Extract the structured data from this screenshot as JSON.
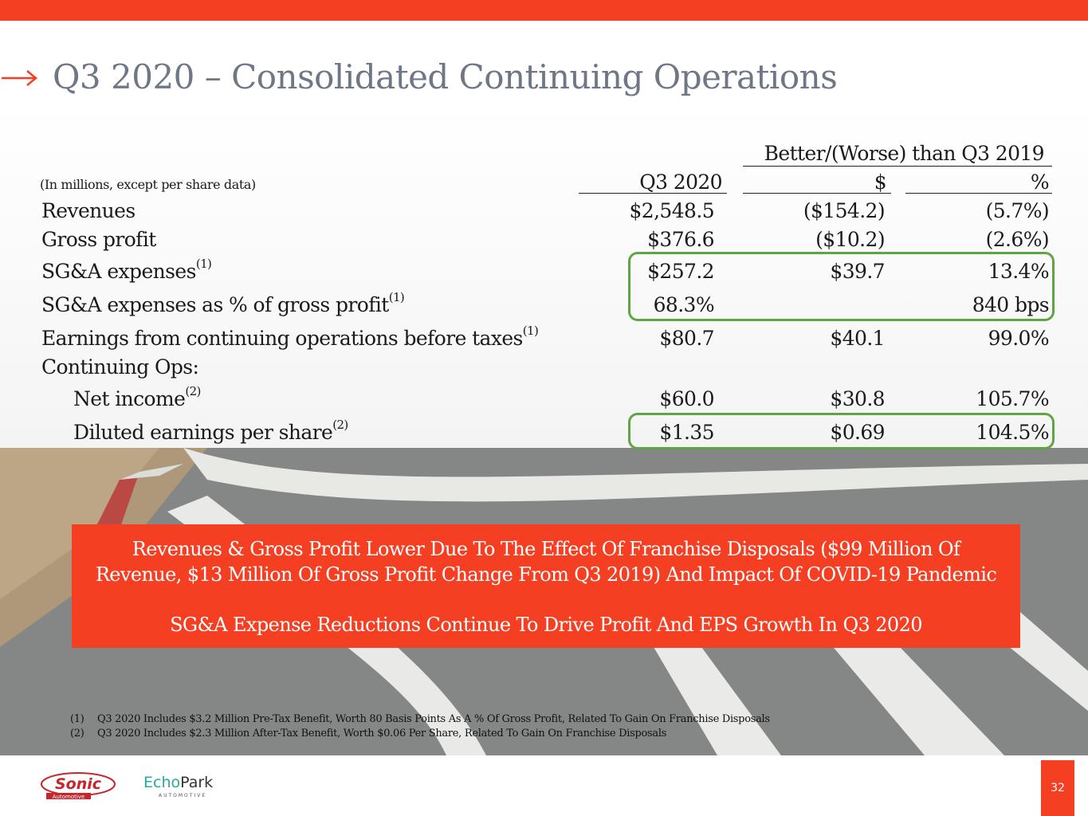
{
  "title": "Q3 2020 – Consolidated Continuing Operations",
  "colors": {
    "accent": "#f43f23",
    "highlight": "#5fa544",
    "title": "#6f7786"
  },
  "table": {
    "group_header": "Better/(Worse) than Q3 2019",
    "units_note": "(In millions, except per share data)",
    "col_q3": "Q3 2020",
    "col_dollar": "$",
    "col_pct": "%",
    "rows": [
      {
        "label": "Revenues",
        "sup": "",
        "q3": "$2,548.5",
        "dollar": "($154.2)",
        "pct": "(5.7%)"
      },
      {
        "label": "Gross profit",
        "sup": "",
        "q3": "$376.6",
        "dollar": "($10.2)",
        "pct": "(2.6%)"
      },
      {
        "label": "SG&A expenses",
        "sup": "(1)",
        "q3": "$257.2",
        "dollar": "$39.7",
        "pct": "13.4%"
      },
      {
        "label": "SG&A expenses as % of gross profit",
        "sup": "(1)",
        "q3": "68.3%",
        "dollar": "",
        "pct": "840 bps"
      },
      {
        "label": "Earnings from continuing operations before taxes",
        "sup": "(1)",
        "q3": "$80.7",
        "dollar": "$40.1",
        "pct": "99.0%"
      },
      {
        "label": "Continuing Ops:",
        "sup": "",
        "q3": "",
        "dollar": "",
        "pct": ""
      },
      {
        "label": "Net income",
        "sup": "(2)",
        "q3": "$60.0",
        "dollar": "$30.8",
        "pct": "105.7%"
      },
      {
        "label": "Diluted earnings per share",
        "sup": "(2)",
        "q3": "$1.35",
        "dollar": "$0.69",
        "pct": "104.5%"
      }
    ]
  },
  "callout": {
    "line1": "Revenues & Gross Profit Lower Due To The Effect Of Franchise Disposals ($99 Million Of",
    "line2": "Revenue, $13 Million Of Gross Profit Change From Q3 2019) And Impact Of COVID-19 Pandemic",
    "line3": "SG&A Expense Reductions Continue To Drive Profit And EPS Growth In Q3 2020"
  },
  "footnotes": [
    {
      "num": "(1)",
      "text": "Q3 2020 Includes $3.2 Million Pre-Tax Benefit, Worth 80 Basis Points As A % Of Gross Profit, Related To Gain On Franchise Disposals"
    },
    {
      "num": "(2)",
      "text": "Q3 2020 Includes $2.3 Million After-Tax Benefit, Worth $0.06 Per Share, Related To Gain On Franchise Disposals"
    }
  ],
  "logos": {
    "sonic": "Sonic",
    "sonic_sub": "Automotive",
    "echopark_a": "Echo",
    "echopark_b": "Park",
    "echopark_sub": "AUTOMOTIVE"
  },
  "page_number": "32"
}
